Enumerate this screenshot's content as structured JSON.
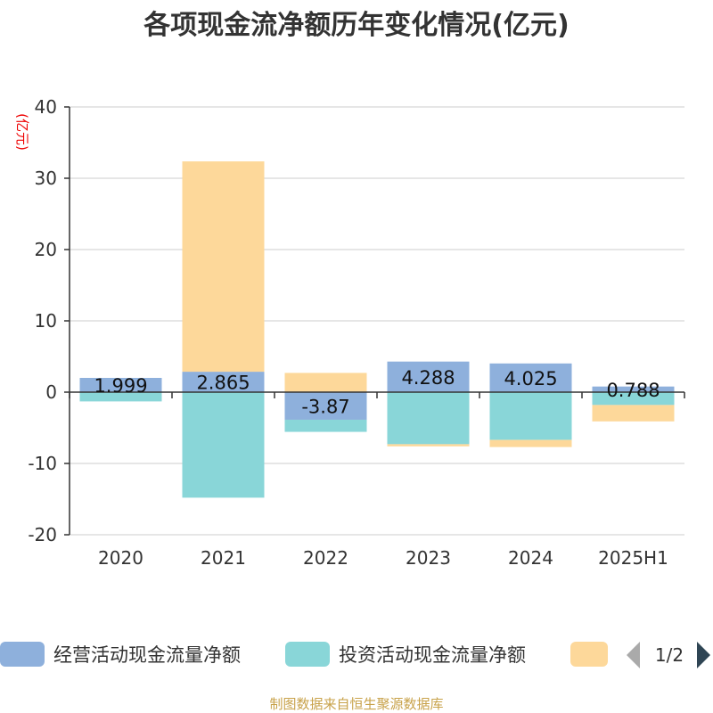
{
  "chart_data": {
    "type": "bar",
    "stacked": true,
    "title": "各项现金流净额历年变化情况(亿元)",
    "unit_label": "(亿元)",
    "categories": [
      "2020",
      "2021",
      "2022",
      "2023",
      "2024",
      "2025H1"
    ],
    "ylim": [
      -20,
      40
    ],
    "yticks": [
      40,
      30,
      20,
      10,
      0,
      -10,
      -20
    ],
    "grid": true,
    "series": [
      {
        "name": "经营活动现金流量净额",
        "color": "#8eb0dc",
        "values": [
          1.999,
          2.865,
          -3.87,
          4.288,
          4.025,
          0.788
        ]
      },
      {
        "name": "投资活动现金流量净额",
        "color": "#89d6d8",
        "values": [
          -1.3,
          -14.8,
          -1.7,
          -7.3,
          -6.7,
          -1.8
        ]
      },
      {
        "name": "",
        "color": "#fdd89a",
        "values": [
          0,
          29.5,
          2.7,
          -0.3,
          -1.0,
          -2.3
        ]
      }
    ],
    "data_labels": [
      "1.999",
      "2.865",
      "-3.87",
      "4.288",
      "4.025",
      "0.788"
    ],
    "legend": {
      "position": "bottom",
      "page": "1/2"
    },
    "source": "制图数据来自恒生聚源数据库"
  }
}
